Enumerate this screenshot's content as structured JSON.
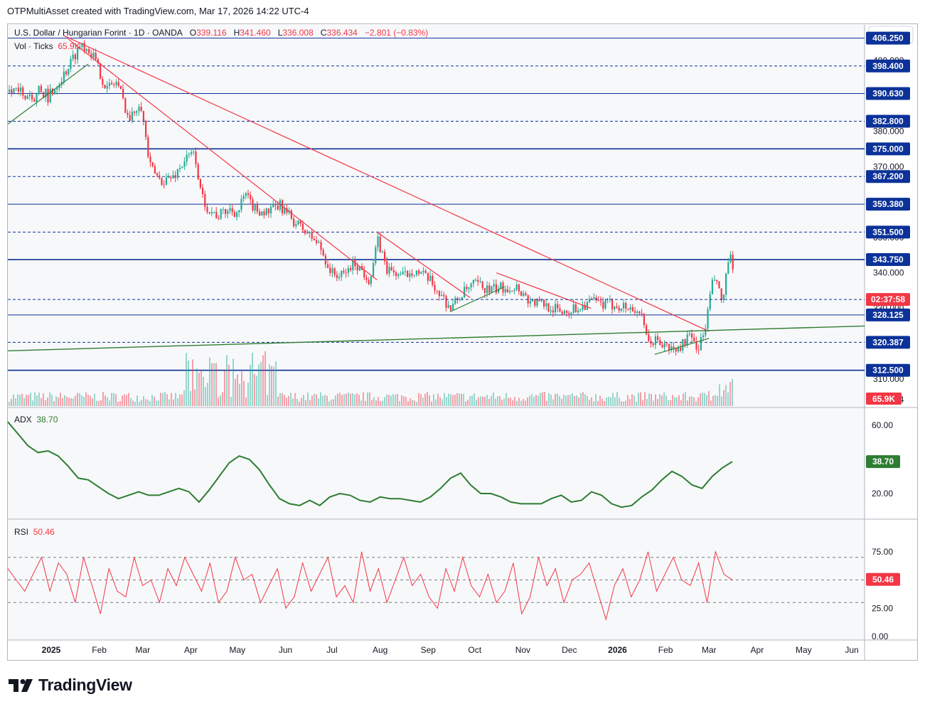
{
  "credit": "OTPMultiAsset created with TradingView.com, Mar 17, 2026 14:22 UTC-4",
  "legend": {
    "symbol": "U.S. Dollar / Hungarian Forint · 1D · OANDA",
    "open_label": "O",
    "open": "339.116",
    "high_label": "H",
    "high": "341.460",
    "low_label": "L",
    "low": "336.008",
    "close_label": "C",
    "close": "336.434",
    "change": "−2.801 (−0.83%)",
    "vol_label": "Vol · Ticks",
    "vol_value": "65.9K",
    "adx_label": "ADX",
    "adx_value": "38.70",
    "rsi_label": "RSI",
    "rsi_value": "50.46"
  },
  "currency": "HUF",
  "logo_text": "TradingView",
  "colors": {
    "up": "#22ab94",
    "down": "#f23645",
    "level": "#0c3299",
    "trend_red": "#f23645",
    "trend_green": "#2e7d32",
    "adx": "#2e7d32",
    "rsi": "#f23645"
  },
  "chart_data": [
    {
      "type": "candlestick",
      "title": "U.S. Dollar / Hungarian Forint · 1D · OANDA",
      "x_ticks": [
        "2025",
        "Feb",
        "Mar",
        "Apr",
        "May",
        "Jun",
        "Jul",
        "Aug",
        "Sep",
        "Oct",
        "Nov",
        "Dec",
        "2026",
        "Feb",
        "Mar",
        "Apr",
        "May",
        "Jun"
      ],
      "y_ticks": [
        "400.000",
        "380.000",
        "370.000",
        "350.000",
        "340.000",
        "330.000",
        "310.000",
        "304.224"
      ],
      "ylim": [
        302,
        410
      ],
      "horizontal_levels": [
        {
          "value": 406.25,
          "label": "406.250",
          "style": "solid"
        },
        {
          "value": 398.4,
          "label": "398.400",
          "style": "dashed"
        },
        {
          "value": 390.63,
          "label": "390.630",
          "style": "solid"
        },
        {
          "value": 382.8,
          "label": "382.800",
          "style": "dashed"
        },
        {
          "value": 375.0,
          "label": "375.000",
          "style": "solid-bold"
        },
        {
          "value": 367.2,
          "label": "367.200",
          "style": "dashed"
        },
        {
          "value": 359.38,
          "label": "359.380",
          "style": "solid"
        },
        {
          "value": 351.5,
          "label": "351.500",
          "style": "dashed"
        },
        {
          "value": 343.75,
          "label": "343.750",
          "style": "solid-bold"
        },
        {
          "value": 328.125,
          "label": "328.125",
          "style": "solid"
        },
        {
          "value": 320.387,
          "label": "320.387",
          "style": "dashed"
        },
        {
          "value": 312.5,
          "label": "312.500",
          "style": "solid-bold"
        }
      ],
      "last_price_label": "02:37:58",
      "last_price": 336.434,
      "price_path": [
        [
          "2025-01-01",
          391
        ],
        [
          "2025-01-10",
          397
        ],
        [
          "2025-01-20",
          405
        ],
        [
          "2025-01-27",
          402
        ],
        [
          "2025-02-05",
          392
        ],
        [
          "2025-02-12",
          394
        ],
        [
          "2025-02-20",
          383
        ],
        [
          "2025-02-27",
          389
        ],
        [
          "2025-03-05",
          370
        ],
        [
          "2025-03-12",
          366
        ],
        [
          "2025-03-20",
          367
        ],
        [
          "2025-03-28",
          372
        ],
        [
          "2025-04-03",
          374
        ],
        [
          "2025-04-07",
          362
        ],
        [
          "2025-04-12",
          358
        ],
        [
          "2025-04-18",
          356
        ],
        [
          "2025-04-25",
          358
        ],
        [
          "2025-05-01",
          357
        ],
        [
          "2025-05-05",
          362
        ],
        [
          "2025-05-12",
          358
        ],
        [
          "2025-05-20",
          357
        ],
        [
          "2025-05-28",
          359
        ],
        [
          "2025-06-05",
          355
        ],
        [
          "2025-06-15",
          351
        ],
        [
          "2025-06-22",
          348
        ],
        [
          "2025-06-30",
          340
        ],
        [
          "2025-07-07",
          339
        ],
        [
          "2025-07-15",
          343
        ],
        [
          "2025-07-25",
          338
        ],
        [
          "2025-07-30",
          349
        ],
        [
          "2025-08-05",
          341
        ],
        [
          "2025-08-15",
          339
        ],
        [
          "2025-08-22",
          341
        ],
        [
          "2025-09-01",
          338
        ],
        [
          "2025-09-10",
          333
        ],
        [
          "2025-09-15",
          330
        ],
        [
          "2025-09-22",
          334
        ],
        [
          "2025-10-01",
          337
        ],
        [
          "2025-10-10",
          335
        ],
        [
          "2025-10-20",
          336
        ],
        [
          "2025-10-28",
          336
        ],
        [
          "2025-11-05",
          332
        ],
        [
          "2025-11-15",
          331
        ],
        [
          "2025-11-25",
          329
        ],
        [
          "2025-12-05",
          330
        ],
        [
          "2025-12-15",
          332
        ],
        [
          "2025-12-22",
          331
        ],
        [
          "2025-12-31",
          331
        ],
        [
          "2026-01-08",
          330
        ],
        [
          "2026-01-15",
          329
        ],
        [
          "2026-01-20",
          320
        ],
        [
          "2026-01-25",
          321
        ],
        [
          "2026-02-01",
          319
        ],
        [
          "2026-02-08",
          318
        ],
        [
          "2026-02-15",
          322
        ],
        [
          "2026-02-22",
          319
        ],
        [
          "2026-02-26",
          324
        ],
        [
          "2026-03-02",
          336
        ],
        [
          "2026-03-05",
          339
        ],
        [
          "2026-03-09",
          330
        ],
        [
          "2026-03-12",
          342
        ],
        [
          "2026-03-15",
          344
        ],
        [
          "2026-03-17",
          336.434
        ]
      ]
    },
    {
      "type": "line",
      "title": "ADX",
      "y_ticks": [
        "60.00",
        "38.70",
        "20.00"
      ],
      "ylim": [
        5,
        70
      ],
      "series": [
        {
          "name": "ADX",
          "values": [
            62,
            55,
            48,
            44,
            45,
            42,
            36,
            29,
            28,
            24,
            20,
            17,
            19,
            21,
            19,
            19,
            21,
            23,
            21,
            15,
            22,
            30,
            38,
            42,
            40,
            34,
            25,
            17,
            14,
            13,
            16,
            13,
            18,
            20,
            19,
            16,
            15,
            18,
            17,
            17,
            16,
            15,
            18,
            23,
            29,
            32,
            25,
            20,
            20,
            18,
            15,
            14,
            14,
            14,
            17,
            19,
            15,
            16,
            21,
            19,
            14,
            12,
            13,
            18,
            22,
            28,
            33,
            30,
            25,
            23,
            30,
            35,
            38.7
          ]
        }
      ]
    },
    {
      "type": "line",
      "title": "RSI",
      "y_ticks": [
        "75.00",
        "50.46",
        "25.00",
        "0.00"
      ],
      "ylim": [
        0,
        100
      ],
      "reference_lines": [
        70,
        50,
        30
      ],
      "series": [
        {
          "name": "RSI",
          "values": [
            60,
            50,
            40,
            55,
            70,
            40,
            65,
            55,
            30,
            70,
            45,
            20,
            60,
            40,
            35,
            70,
            45,
            50,
            30,
            60,
            45,
            70,
            55,
            40,
            65,
            30,
            40,
            70,
            50,
            55,
            30,
            45,
            60,
            25,
            35,
            65,
            40,
            55,
            70,
            35,
            45,
            30,
            75,
            40,
            60,
            30,
            50,
            70,
            45,
            55,
            35,
            25,
            60,
            40,
            70,
            45,
            35,
            55,
            30,
            40,
            65,
            20,
            35,
            70,
            45,
            60,
            30,
            50,
            55,
            65,
            40,
            15,
            45,
            60,
            35,
            50,
            75,
            40,
            55,
            70,
            50,
            45,
            65,
            30,
            75,
            55,
            50
          ]
        }
      ]
    }
  ]
}
